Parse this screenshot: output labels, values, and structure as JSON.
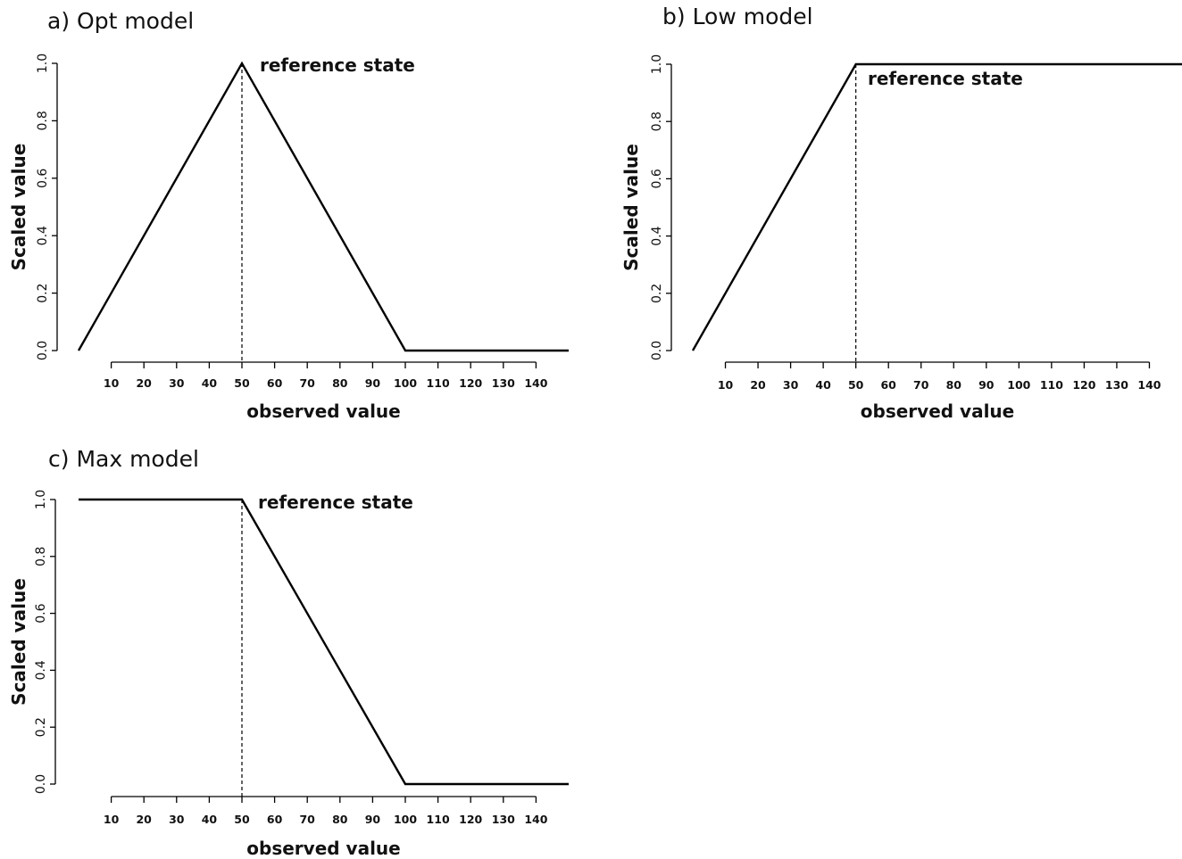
{
  "chart_data": [
    {
      "type": "line",
      "title": "a) Opt model",
      "xlabel": "observed value",
      "ylabel": "Scaled value",
      "x_ticks": [
        10,
        20,
        30,
        40,
        50,
        60,
        70,
        80,
        90,
        100,
        110,
        120,
        130,
        140
      ],
      "y_ticks": [
        "0.0",
        "0.2",
        "0.4",
        "0.6",
        "0.8",
        "1.0"
      ],
      "xlim": [
        0,
        150
      ],
      "ylim": [
        0,
        1
      ],
      "series": [
        {
          "x": [
            0,
            50,
            100,
            150
          ],
          "values": [
            0,
            1,
            0,
            0
          ]
        }
      ],
      "reference_x": 50,
      "annotation": "reference state",
      "grid": false
    },
    {
      "type": "line",
      "title": "b) Low model",
      "xlabel": "observed value",
      "ylabel": "Scaled value",
      "x_ticks": [
        10,
        20,
        30,
        40,
        50,
        60,
        70,
        80,
        90,
        100,
        110,
        120,
        130,
        140
      ],
      "y_ticks": [
        "0.0",
        "0.2",
        "0.4",
        "0.6",
        "0.8",
        "1.0"
      ],
      "xlim": [
        0,
        150
      ],
      "ylim": [
        0,
        1
      ],
      "series": [
        {
          "x": [
            0,
            50,
            150
          ],
          "values": [
            0,
            1,
            1
          ]
        }
      ],
      "reference_x": 50,
      "annotation": "reference state",
      "grid": false
    },
    {
      "type": "line",
      "title": "c) Max model",
      "xlabel": "observed value",
      "ylabel": "Scaled value",
      "x_ticks": [
        10,
        20,
        30,
        40,
        50,
        60,
        70,
        80,
        90,
        100,
        110,
        120,
        130,
        140
      ],
      "y_ticks": [
        "0.0",
        "0.2",
        "0.4",
        "0.6",
        "0.8",
        "1.0"
      ],
      "xlim": [
        0,
        150
      ],
      "ylim": [
        0,
        1
      ],
      "series": [
        {
          "x": [
            0,
            50,
            100,
            150
          ],
          "values": [
            1,
            1,
            0,
            0
          ]
        }
      ],
      "reference_x": 50,
      "annotation": "reference state",
      "grid": false
    }
  ]
}
